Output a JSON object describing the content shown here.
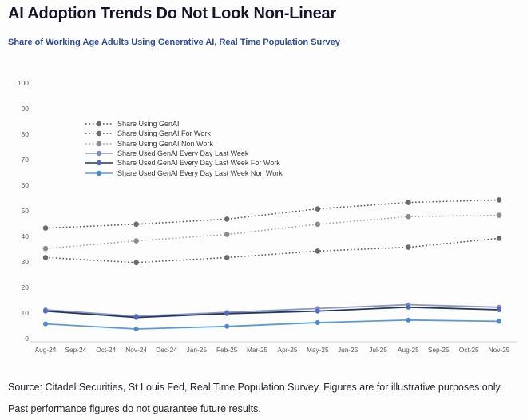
{
  "page": {
    "title": "AI Adoption Trends Do Not Look Non-Linear",
    "subtitle": "Share of Working Age Adults Using Generative AI, Real Time Population Survey",
    "footer": "Source: Citadel Securities, St Louis Fed, Real Time Population Survey. Figures are for illustrative purposes only. Past performance figures do not guarantee future results."
  },
  "colors": {
    "title_text": "#14142a",
    "subtitle_text": "#2a4aa4",
    "axis_text": "#595959",
    "axis_line": "#d8d8d8",
    "legend_text": "#3a3a3a"
  },
  "chart_data": {
    "type": "line",
    "title": "Share of Working Age Adults Using Generative AI, Real Time Population Survey",
    "xlabel": "",
    "ylabel": "",
    "ylim": [
      0,
      100
    ],
    "y_tick_step": 10,
    "grid": false,
    "legend_position": "inside-top-left",
    "x_tick_labels": [
      "Aug-24",
      "Sep-24",
      "Oct-24",
      "Nov-24",
      "Dec-24",
      "Jan-25",
      "Feb-25",
      "Mar-25",
      "Apr-25",
      "May-25",
      "Jun-25",
      "Jul-25",
      "Aug-25",
      "Sep-25",
      "Oct-25",
      "Nov-25"
    ],
    "data_months": [
      "Aug-24",
      "Nov-24",
      "Feb-25",
      "May-25",
      "Aug-25",
      "Nov-25"
    ],
    "data_month_indices": [
      0,
      3,
      6,
      9,
      12,
      15
    ],
    "series": [
      {
        "name": "Share Using GenAI",
        "style": "dotted",
        "color": "#595959",
        "marker_color": "#6b6b6b",
        "values": [
          44.5,
          46,
          48,
          52,
          54.5,
          55.5
        ]
      },
      {
        "name": "Share Using GenAI For Work",
        "style": "dotted",
        "color": "#595959",
        "marker_color": "#6b6b6b",
        "values": [
          33,
          31,
          33,
          35.5,
          37,
          40.5
        ]
      },
      {
        "name": "Share Using GenAI Non Work",
        "style": "dotted",
        "color": "#a8a8a8",
        "marker_color": "#8c8c8c",
        "values": [
          36.5,
          39.5,
          42,
          46,
          49,
          49.5
        ]
      },
      {
        "name": "Share Used GenAI Every Day Last Week",
        "style": "solid",
        "color": "#8d96c6",
        "marker_color": "#7d8cc9",
        "values": [
          12.5,
          10,
          11.5,
          13,
          14.5,
          13.5
        ]
      },
      {
        "name": "Share Used GenAI Every Day Last Week For Work",
        "style": "solid",
        "color": "#1f3864",
        "marker_color": "#4f6bbf",
        "values": [
          12,
          9.5,
          11,
          12,
          13.5,
          12.5
        ]
      },
      {
        "name": "Share Used GenAI Every Day Last Week Non Work",
        "style": "solid",
        "color": "#5b9bd5",
        "marker_color": "#4a89d0",
        "values": [
          7,
          5,
          6,
          7.5,
          8.5,
          8
        ]
      }
    ]
  }
}
